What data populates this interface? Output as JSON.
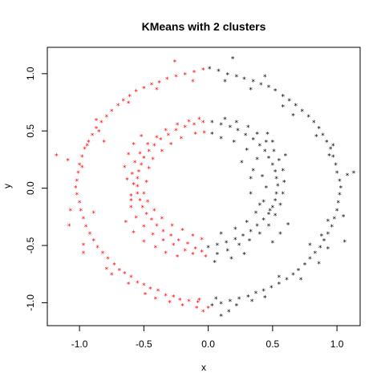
{
  "chart_data": {
    "type": "scatter",
    "title": "KMeans with 2 clusters",
    "xlabel": "x",
    "ylabel": "y",
    "xlim": [
      -1.25,
      1.18
    ],
    "ylim": [
      -1.2,
      1.23
    ],
    "xticks": [
      -1.0,
      -0.5,
      0.0,
      0.5,
      1.0
    ],
    "xtick_labels": [
      "-1.0",
      "-0.5",
      "0.0",
      "0.5",
      "1.0"
    ],
    "yticks": [
      -1.0,
      -0.5,
      0.0,
      0.5,
      1.0
    ],
    "ytick_labels": [
      "-1.0",
      "-0.5",
      "0.0",
      "0.5",
      "1.0"
    ],
    "marker": "*",
    "grid": false,
    "legend": "none",
    "series": [
      {
        "color": "#ff0000",
        "points": [
          [
            -0.0,
            -1.05
          ],
          [
            -0.08,
            -1.0
          ],
          [
            -0.15,
            -0.99
          ],
          [
            -0.22,
            -0.98
          ],
          [
            -0.27,
            -0.95
          ],
          [
            -0.33,
            -0.94
          ],
          [
            -0.39,
            -0.9
          ],
          [
            -0.45,
            -0.88
          ],
          [
            -0.5,
            -0.85
          ],
          [
            -0.55,
            -0.83
          ],
          [
            -0.6,
            -0.78
          ],
          [
            -0.65,
            -0.75
          ],
          [
            -0.69,
            -0.72
          ],
          [
            -0.73,
            -0.67
          ],
          [
            -0.78,
            -0.62
          ],
          [
            -0.82,
            -0.57
          ],
          [
            -0.86,
            -0.52
          ],
          [
            -0.89,
            -0.46
          ],
          [
            -0.92,
            -0.4
          ],
          [
            -0.95,
            -0.34
          ],
          [
            -0.97,
            -0.27
          ],
          [
            -0.99,
            -0.2
          ],
          [
            -1.0,
            -0.13
          ],
          [
            -1.02,
            -0.06
          ],
          [
            -1.03,
            0.0
          ],
          [
            -1.02,
            0.06
          ],
          [
            -1.01,
            0.13
          ],
          [
            -1.0,
            0.2
          ],
          [
            -0.98,
            0.27
          ],
          [
            -0.96,
            0.34
          ],
          [
            -0.93,
            0.4
          ],
          [
            -0.9,
            0.46
          ],
          [
            -0.87,
            0.52
          ],
          [
            -0.83,
            0.57
          ],
          [
            -0.79,
            0.62
          ],
          [
            -0.75,
            0.67
          ],
          [
            -0.7,
            0.72
          ],
          [
            -0.66,
            0.76
          ],
          [
            -0.61,
            0.8
          ],
          [
            -0.56,
            0.84
          ],
          [
            -0.5,
            0.87
          ],
          [
            -0.44,
            0.9
          ],
          [
            -0.38,
            0.92
          ],
          [
            -0.32,
            0.95
          ],
          [
            -0.25,
            0.97
          ],
          [
            -0.18,
            0.99
          ],
          [
            -0.11,
            1.01
          ],
          [
            -0.04,
            1.03
          ],
          [
            -0.26,
            1.1
          ],
          [
            -0.12,
            0.93
          ],
          [
            -0.4,
            0.86
          ],
          [
            -0.62,
            0.74
          ],
          [
            -0.85,
            0.49
          ],
          [
            -1.09,
            0.24
          ],
          [
            -1.18,
            0.28
          ],
          [
            -0.98,
            0.18
          ],
          [
            -1.07,
            -0.2
          ],
          [
            -1.08,
            -0.33
          ],
          [
            -0.97,
            -0.5
          ],
          [
            -0.97,
            -0.57
          ],
          [
            -0.79,
            -0.71
          ],
          [
            -0.75,
            -0.76
          ],
          [
            -0.62,
            -0.84
          ],
          [
            -0.49,
            -0.93
          ],
          [
            -0.41,
            -0.97
          ],
          [
            -0.3,
            -1.0
          ],
          [
            -0.2,
            -1.03
          ],
          [
            -0.09,
            -1.05
          ],
          [
            -0.04,
            -1.08
          ],
          [
            -0.07,
            -0.98
          ],
          [
            -0.87,
            0.59
          ],
          [
            -0.94,
            0.37
          ],
          [
            -0.81,
            0.4
          ],
          [
            -0.89,
            -0.22
          ],
          [
            -0.05,
            -0.56
          ],
          [
            -0.1,
            -0.53
          ],
          [
            -0.16,
            -0.49
          ],
          [
            -0.23,
            -0.46
          ],
          [
            -0.29,
            -0.42
          ],
          [
            -0.35,
            -0.38
          ],
          [
            -0.4,
            -0.33
          ],
          [
            -0.44,
            -0.28
          ],
          [
            -0.48,
            -0.23
          ],
          [
            -0.51,
            -0.17
          ],
          [
            -0.53,
            -0.11
          ],
          [
            -0.55,
            -0.05
          ],
          [
            -0.55,
            0.01
          ],
          [
            -0.55,
            0.08
          ],
          [
            -0.54,
            0.14
          ],
          [
            -0.52,
            0.2
          ],
          [
            -0.5,
            0.26
          ],
          [
            -0.46,
            0.32
          ],
          [
            -0.42,
            0.37
          ],
          [
            -0.37,
            0.42
          ],
          [
            -0.31,
            0.46
          ],
          [
            -0.25,
            0.5
          ],
          [
            -0.18,
            0.53
          ],
          [
            -0.11,
            0.55
          ],
          [
            -0.04,
            0.57
          ],
          [
            -0.58,
            0.03
          ],
          [
            -0.6,
            -0.07
          ],
          [
            -0.59,
            0.12
          ],
          [
            -0.57,
            0.22
          ],
          [
            -0.53,
            0.3
          ],
          [
            -0.47,
            0.38
          ],
          [
            -0.4,
            0.44
          ],
          [
            -0.33,
            0.5
          ],
          [
            -0.24,
            0.55
          ],
          [
            -0.15,
            0.58
          ],
          [
            -0.07,
            0.6
          ],
          [
            -0.6,
            -0.17
          ],
          [
            -0.56,
            -0.26
          ],
          [
            -0.5,
            -0.34
          ],
          [
            -0.43,
            -0.41
          ],
          [
            -0.35,
            -0.46
          ],
          [
            -0.27,
            -0.5
          ],
          [
            -0.18,
            -0.55
          ],
          [
            -0.12,
            -0.58
          ],
          [
            -0.02,
            -0.6
          ],
          [
            -0.48,
            0.05
          ],
          [
            -0.5,
            -0.05
          ],
          [
            -0.46,
            0.17
          ],
          [
            -0.43,
            0.25
          ],
          [
            -0.36,
            0.32
          ],
          [
            -0.29,
            0.38
          ],
          [
            -0.21,
            0.43
          ],
          [
            -0.47,
            -0.12
          ],
          [
            -0.42,
            -0.2
          ],
          [
            -0.36,
            -0.27
          ],
          [
            -0.28,
            -0.33
          ],
          [
            -0.2,
            -0.37
          ],
          [
            -0.12,
            -0.42
          ],
          [
            -0.05,
            -0.45
          ],
          [
            -0.62,
            0.29
          ],
          [
            -0.58,
            0.38
          ],
          [
            -0.52,
            0.45
          ],
          [
            -0.64,
            -0.3
          ],
          [
            -0.58,
            -0.39
          ],
          [
            -0.5,
            -0.47
          ],
          [
            -0.41,
            -0.52
          ],
          [
            -0.33,
            -0.57
          ],
          [
            -0.24,
            -0.6
          ],
          [
            -0.03,
            0.48
          ],
          [
            -0.1,
            0.47
          ],
          [
            -0.6,
            -0.11
          ],
          [
            -0.63,
            0.07
          ],
          [
            -0.65,
            0.18
          ]
        ]
      },
      {
        "color": "#000000",
        "points": [
          [
            0.01,
            1.04
          ],
          [
            0.08,
            1.02
          ],
          [
            0.15,
            0.99
          ],
          [
            0.22,
            0.97
          ],
          [
            0.28,
            0.95
          ],
          [
            0.35,
            0.93
          ],
          [
            0.41,
            0.9
          ],
          [
            0.47,
            0.88
          ],
          [
            0.52,
            0.85
          ],
          [
            0.58,
            0.8
          ],
          [
            0.63,
            0.76
          ],
          [
            0.68,
            0.72
          ],
          [
            0.73,
            0.67
          ],
          [
            0.78,
            0.62
          ],
          [
            0.82,
            0.57
          ],
          [
            0.86,
            0.52
          ],
          [
            0.89,
            0.46
          ],
          [
            0.92,
            0.4
          ],
          [
            0.95,
            0.34
          ],
          [
            0.97,
            0.27
          ],
          [
            0.99,
            0.2
          ],
          [
            1.0,
            0.13
          ],
          [
            1.02,
            0.06
          ],
          [
            1.03,
            0.0
          ],
          [
            1.02,
            -0.06
          ],
          [
            1.01,
            -0.13
          ],
          [
            1.0,
            -0.2
          ],
          [
            0.98,
            -0.27
          ],
          [
            0.96,
            -0.34
          ],
          [
            0.93,
            -0.4
          ],
          [
            0.9,
            -0.46
          ],
          [
            0.87,
            -0.52
          ],
          [
            0.83,
            -0.57
          ],
          [
            0.79,
            -0.62
          ],
          [
            0.75,
            -0.67
          ],
          [
            0.7,
            -0.72
          ],
          [
            0.66,
            -0.76
          ],
          [
            0.61,
            -0.8
          ],
          [
            0.55,
            -0.84
          ],
          [
            0.49,
            -0.87
          ],
          [
            0.43,
            -0.9
          ],
          [
            0.37,
            -0.92
          ],
          [
            0.31,
            -0.95
          ],
          [
            0.24,
            -0.97
          ],
          [
            0.17,
            -0.99
          ],
          [
            0.1,
            -1.01
          ],
          [
            0.03,
            -1.03
          ],
          [
            0.19,
            1.13
          ],
          [
            0.13,
            0.93
          ],
          [
            0.33,
            0.86
          ],
          [
            0.44,
            0.97
          ],
          [
            0.58,
            0.71
          ],
          [
            0.66,
            0.63
          ],
          [
            0.84,
            0.45
          ],
          [
            0.97,
            0.37
          ],
          [
            1.08,
            0.11
          ],
          [
            1.13,
            0.13
          ],
          [
            1.05,
            -0.25
          ],
          [
            1.06,
            -0.47
          ],
          [
            0.93,
            -0.53
          ],
          [
            0.86,
            -0.66
          ],
          [
            0.72,
            -0.8
          ],
          [
            0.55,
            -0.78
          ],
          [
            0.44,
            -0.96
          ],
          [
            0.34,
            -0.99
          ],
          [
            0.22,
            -1.03
          ],
          [
            0.16,
            -1.08
          ],
          [
            0.1,
            -1.12
          ],
          [
            0.06,
            -0.97
          ],
          [
            0.93,
            -0.29
          ],
          [
            0.88,
            -0.42
          ],
          [
            0.79,
            -0.5
          ],
          [
            0.94,
            0.28
          ],
          [
            0.03,
            0.57
          ],
          [
            0.1,
            0.55
          ],
          [
            0.17,
            0.53
          ],
          [
            0.23,
            0.5
          ],
          [
            0.29,
            0.46
          ],
          [
            0.35,
            0.42
          ],
          [
            0.4,
            0.37
          ],
          [
            0.44,
            0.32
          ],
          [
            0.47,
            0.26
          ],
          [
            0.5,
            0.2
          ],
          [
            0.52,
            0.14
          ],
          [
            0.53,
            0.08
          ],
          [
            0.54,
            0.02
          ],
          [
            0.53,
            -0.05
          ],
          [
            0.52,
            -0.11
          ],
          [
            0.5,
            -0.17
          ],
          [
            0.47,
            -0.23
          ],
          [
            0.43,
            -0.28
          ],
          [
            0.38,
            -0.33
          ],
          [
            0.33,
            -0.38
          ],
          [
            0.27,
            -0.42
          ],
          [
            0.21,
            -0.45
          ],
          [
            0.14,
            -0.48
          ],
          [
            0.07,
            -0.5
          ],
          [
            0.0,
            -0.52
          ],
          [
            0.13,
            0.6
          ],
          [
            0.22,
            0.57
          ],
          [
            0.31,
            0.53
          ],
          [
            0.38,
            0.47
          ],
          [
            0.45,
            0.4
          ],
          [
            0.51,
            0.32
          ],
          [
            0.55,
            0.24
          ],
          [
            0.58,
            0.15
          ],
          [
            0.59,
            0.05
          ],
          [
            0.58,
            -0.05
          ],
          [
            0.56,
            -0.15
          ],
          [
            0.52,
            -0.24
          ],
          [
            0.47,
            -0.33
          ],
          [
            0.4,
            -0.4
          ],
          [
            0.32,
            -0.46
          ],
          [
            0.24,
            -0.5
          ],
          [
            0.15,
            -0.55
          ],
          [
            0.07,
            -0.58
          ],
          [
            0.35,
            0.15
          ],
          [
            0.42,
            0.1
          ],
          [
            0.45,
            0.0
          ],
          [
            0.43,
            -0.12
          ],
          [
            0.37,
            -0.22
          ],
          [
            0.3,
            -0.3
          ],
          [
            0.21,
            -0.36
          ],
          [
            0.1,
            -0.4
          ],
          [
            0.33,
            -0.05
          ],
          [
            0.4,
            -0.15
          ],
          [
            0.38,
            0.25
          ],
          [
            0.3,
            0.33
          ],
          [
            0.2,
            0.4
          ],
          [
            0.1,
            0.43
          ],
          [
            0.03,
            0.47
          ],
          [
            0.46,
            0.47
          ],
          [
            0.5,
            0.4
          ],
          [
            0.6,
            0.28
          ],
          [
            0.62,
            -0.32
          ],
          [
            0.56,
            -0.4
          ],
          [
            0.5,
            -0.48
          ],
          [
            0.28,
            -0.58
          ],
          [
            0.18,
            -0.62
          ],
          [
            0.05,
            -0.65
          ],
          [
            0.48,
            -0.2
          ],
          [
            0.26,
            0.22
          ],
          [
            0.33,
            0.08
          ]
        ]
      }
    ]
  }
}
